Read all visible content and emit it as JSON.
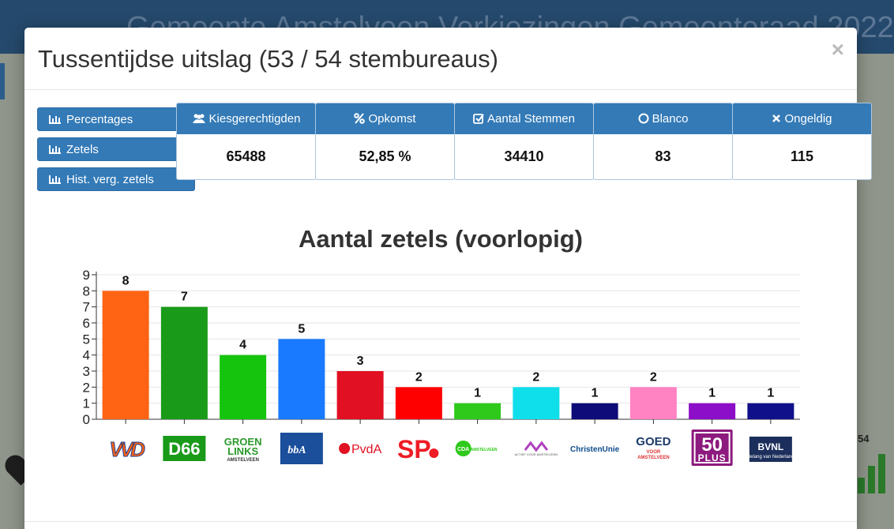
{
  "background": {
    "title": "Gemeente Amstelveen Verkiezingen Gemeenteraad 2022",
    "side_number": "54"
  },
  "modal": {
    "title": "Tussentijdse uitslag (53 / 54 stembureaus)",
    "close_label": "×"
  },
  "side_buttons": [
    {
      "label": "Percentages"
    },
    {
      "label": "Zetels"
    },
    {
      "label": "Hist. verg. zetels"
    }
  ],
  "stats": [
    {
      "label": "Kiesgerechtigden",
      "icon": "users-icon",
      "value": "65488"
    },
    {
      "label": "Opkomst",
      "icon": "percent-icon",
      "value": "52,85 %"
    },
    {
      "label": "Aantal Stemmen",
      "icon": "check-square-icon",
      "value": "34410"
    },
    {
      "label": "Blanco",
      "icon": "circle-icon",
      "value": "83"
    },
    {
      "label": "Ongeldig",
      "icon": "x-icon",
      "value": "115"
    }
  ],
  "chart_data": {
    "type": "bar",
    "title": "Aantal zetels (voorlopig)",
    "categories": [
      "VVD",
      "D66",
      "GROENLINKS AMSTELVEEN",
      "bbA",
      "PvdA",
      "SP",
      "CDA AMSTELVEEN",
      "Actief voor Amstelveen",
      "ChristenUnie",
      "GOED VOOR AMSTELVEEN",
      "50PLUS",
      "BVNL Belang van Nederland"
    ],
    "values": [
      8,
      7,
      4,
      5,
      3,
      2,
      1,
      2,
      1,
      2,
      1,
      1
    ],
    "data_labels": [
      "8",
      "7",
      "4",
      "5",
      "3",
      "2",
      "1",
      "2",
      "1",
      "2",
      "1",
      "1"
    ],
    "colors": [
      "#ff6314",
      "#1a9a19",
      "#15c40d",
      "#1a7aff",
      "#e11022",
      "#ff0000",
      "#2ec91b",
      "#0fdfea",
      "#0e0c78",
      "#ff82c3",
      "#8d0ec8",
      "#10108b"
    ],
    "ylim": [
      0,
      9
    ],
    "yticks": [
      "0",
      "1",
      "2",
      "3",
      "4",
      "5",
      "6",
      "7",
      "8",
      "9"
    ],
    "grid": true,
    "xlabel": "",
    "ylabel": "",
    "logos": [
      {
        "text": "VVD",
        "color": "#ff6314"
      },
      {
        "text": "D66",
        "color": "#1a9a19"
      },
      {
        "text": "GROEN",
        "text2": "LINKS",
        "text3": "AMSTELVEEN",
        "color": "#3aa935"
      },
      {
        "text": "bbA",
        "color": "#1b4e9b"
      },
      {
        "text": "PvdA",
        "color": "#e11022"
      },
      {
        "text": "SP",
        "color": "#ee1c25"
      },
      {
        "text": "CDA",
        "text2": "AMSTELVEEN",
        "color": "#2ec91b"
      },
      {
        "text": "ACTIEF VOOR AMSTELVEEN",
        "color": "#b03fbf"
      },
      {
        "text": "ChristenUnie",
        "color": "#0d4d8c"
      },
      {
        "text": "GOED",
        "text2": "VOOR",
        "text3": "AMSTELVEEN",
        "color": "#1b3a6b"
      },
      {
        "text": "50",
        "text2": "PLUS",
        "color": "#8d1a7e"
      },
      {
        "text": "BVNL",
        "text2": "Belang van Nederland",
        "color": "#1c2f5c"
      }
    ]
  }
}
